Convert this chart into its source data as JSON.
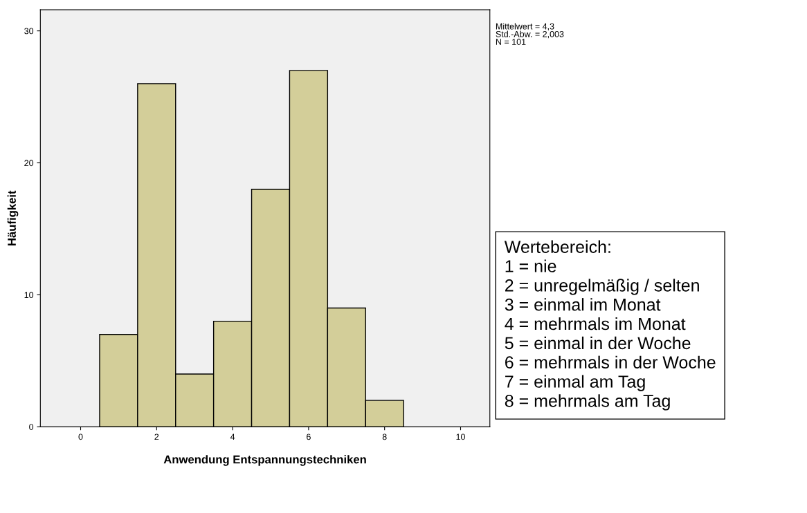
{
  "chart_data": {
    "type": "histogram",
    "xlabel": "Anwendung Entspannungstechniken",
    "ylabel": "Häufigkeit",
    "bins": [
      0.5,
      1.5,
      2.5,
      3.5,
      4.5,
      5.5,
      6.5,
      7.5,
      8.5
    ],
    "values": [
      7,
      26,
      4,
      8,
      18,
      27,
      9,
      2
    ],
    "color": "#d3ce99",
    "xlim": [
      -1.06,
      10.77
    ],
    "xticks": [
      0,
      2,
      4,
      6,
      8,
      10
    ],
    "ylim": [
      0,
      31.6
    ],
    "yticks": [
      0,
      10,
      20,
      30
    ],
    "grid": false,
    "annotations": [
      "Mittelwert = 4,3\nStd.-Abw. = 2,003\nN = 101",
      "Wertebereich:\n1 = nie\n2 = unregelmäßig / selten\n3 = einmal im Monat\n4 = mehrmals im Monat\n5 = einmal in der Woche\n6 = mehrmals in der Woche\n7 = einmal am Tag\n8 = mehrmals am Tag"
    ]
  }
}
